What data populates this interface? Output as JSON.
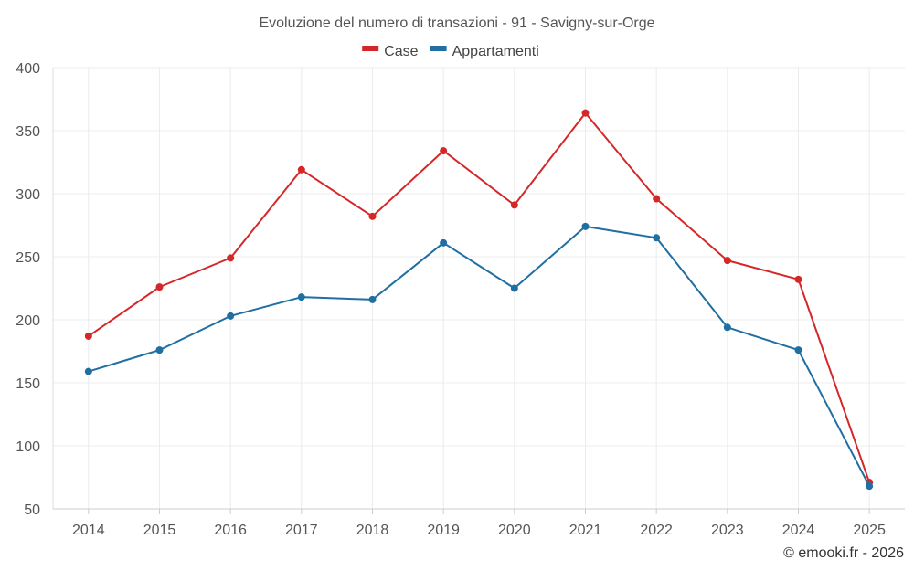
{
  "chart_data": {
    "type": "line",
    "title": "Evoluzione del numero di transazioni - 91 - Savigny-sur-Orge",
    "xlabel": "",
    "ylabel": "",
    "categories": [
      "2014",
      "2015",
      "2016",
      "2017",
      "2018",
      "2019",
      "2020",
      "2021",
      "2022",
      "2023",
      "2024",
      "2025"
    ],
    "ylim": [
      50,
      400
    ],
    "yticks": [
      50,
      100,
      150,
      200,
      250,
      300,
      350,
      400
    ],
    "grid": true,
    "legend_position": "top-center",
    "series": [
      {
        "name": "Case",
        "color": "#d62728",
        "values": [
          187,
          226,
          249,
          319,
          282,
          334,
          291,
          364,
          296,
          247,
          232,
          71
        ]
      },
      {
        "name": "Appartamenti",
        "color": "#1f6fa3",
        "values": [
          159,
          176,
          203,
          218,
          216,
          261,
          225,
          274,
          265,
          194,
          176,
          68
        ]
      }
    ]
  },
  "credit": "© emooki.fr - 2026"
}
